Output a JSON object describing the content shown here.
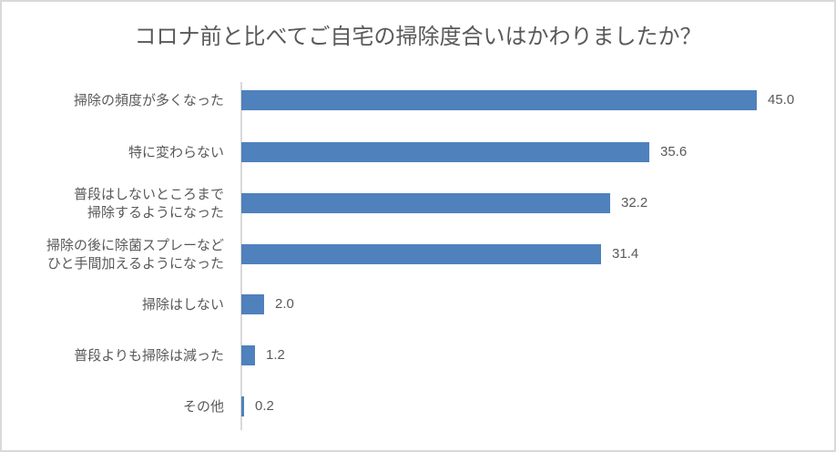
{
  "chart_data": {
    "type": "bar",
    "orientation": "horizontal",
    "title": "コロナ前と比べてご自宅の掃除度合いはかわりましたか？",
    "categories": [
      "掃除の頻度が多くなった",
      "特に変わらない",
      "普段はしないところまで\n掃除するようになった",
      "掃除の後に除菌スプレーなど\nひと手間加えるようになった",
      "掃除はしない",
      "普段よりも掃除は減った",
      "その他"
    ],
    "values": [
      45.0,
      35.6,
      32.2,
      31.4,
      2.0,
      1.2,
      0.2
    ],
    "value_labels": [
      "45.0",
      "35.6",
      "32.2",
      "31.4",
      "2.0",
      "1.2",
      "0.2"
    ],
    "xlabel": "",
    "ylabel": "",
    "xlim": [
      0,
      45
    ],
    "grid": false,
    "legend": null,
    "bar_color": "#4f81bd"
  },
  "rows": [
    {
      "lines": [
        "掃除の頻度が多くなった"
      ],
      "value": "45.0"
    },
    {
      "lines": [
        "特に変わらない"
      ],
      "value": "35.6"
    },
    {
      "lines": [
        "普段はしないところまで",
        "掃除するようになった"
      ],
      "value": "32.2"
    },
    {
      "lines": [
        "掃除の後に除菌スプレーなど",
        "ひと手間加えるようになった"
      ],
      "value": "31.4"
    },
    {
      "lines": [
        "掃除はしない"
      ],
      "value": "2.0"
    },
    {
      "lines": [
        "普段よりも掃除は減った"
      ],
      "value": "1.2"
    },
    {
      "lines": [
        "その他"
      ],
      "value": "0.2"
    }
  ]
}
